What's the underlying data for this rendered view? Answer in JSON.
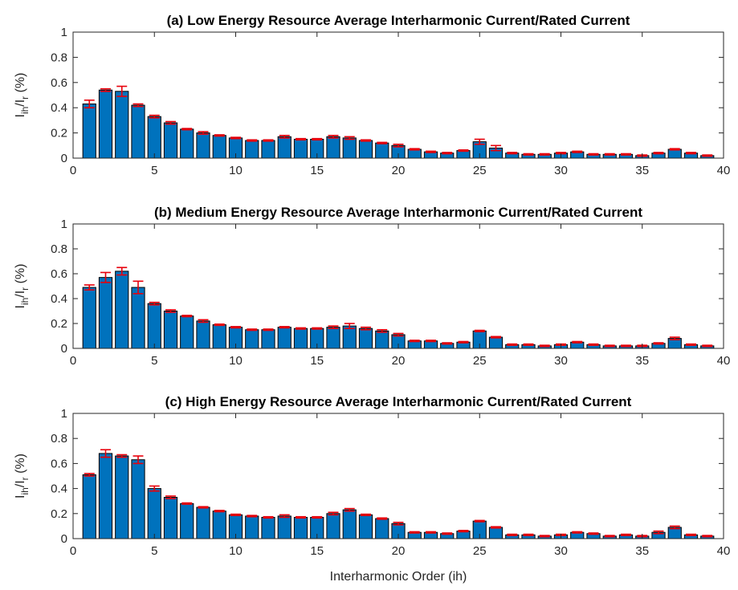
{
  "chart_data": [
    {
      "type": "bar",
      "title": "(a) Low Energy Resource Average Interharmonic Current/Rated Current",
      "ylabel": {
        "base": "I",
        "sub1": "ih",
        "mid": "/I",
        "sub2": "r",
        "unit": " (%)"
      },
      "xlim": [
        0,
        40
      ],
      "ylim": [
        0,
        1
      ],
      "xticks": [
        0,
        5,
        10,
        15,
        20,
        25,
        30,
        35,
        40
      ],
      "yticks": [
        0,
        0.2,
        0.4,
        0.6,
        0.8,
        1
      ],
      "x": [
        1,
        2,
        3,
        4,
        5,
        6,
        7,
        8,
        9,
        10,
        11,
        12,
        13,
        14,
        15,
        16,
        17,
        18,
        19,
        20,
        21,
        22,
        23,
        24,
        25,
        26,
        27,
        28,
        29,
        30,
        31,
        32,
        33,
        34,
        35,
        36,
        37,
        38,
        39
      ],
      "values": [
        0.43,
        0.54,
        0.53,
        0.42,
        0.33,
        0.28,
        0.23,
        0.2,
        0.18,
        0.16,
        0.14,
        0.14,
        0.17,
        0.15,
        0.15,
        0.17,
        0.16,
        0.14,
        0.12,
        0.1,
        0.07,
        0.05,
        0.04,
        0.06,
        0.13,
        0.08,
        0.04,
        0.03,
        0.03,
        0.04,
        0.05,
        0.03,
        0.03,
        0.03,
        0.02,
        0.04,
        0.07,
        0.04,
        0.02
      ],
      "errors": [
        0.03,
        0.01,
        0.04,
        0.01,
        0.01,
        0.01,
        0.005,
        0.01,
        0.005,
        0.005,
        0.005,
        0.005,
        0.01,
        0.005,
        0.005,
        0.01,
        0.01,
        0.005,
        0.005,
        0.01,
        0.005,
        0.005,
        0.005,
        0.005,
        0.02,
        0.02,
        0.005,
        0.005,
        0.005,
        0.005,
        0.005,
        0.005,
        0.005,
        0.005,
        0.005,
        0.005,
        0.005,
        0.005,
        0.005
      ]
    },
    {
      "type": "bar",
      "title": "(b) Medium Energy Resource Average Interharmonic Current/Rated Current",
      "ylabel": {
        "base": "I",
        "sub1": "ih",
        "mid": "/I",
        "sub2": "r",
        "unit": " (%)"
      },
      "xlim": [
        0,
        40
      ],
      "ylim": [
        0,
        1
      ],
      "xticks": [
        0,
        5,
        10,
        15,
        20,
        25,
        30,
        35,
        40
      ],
      "yticks": [
        0,
        0.2,
        0.4,
        0.6,
        0.8,
        1
      ],
      "x": [
        1,
        2,
        3,
        4,
        5,
        6,
        7,
        8,
        9,
        10,
        11,
        12,
        13,
        14,
        15,
        16,
        17,
        18,
        19,
        20,
        21,
        22,
        23,
        24,
        25,
        26,
        27,
        28,
        29,
        30,
        31,
        32,
        33,
        34,
        35,
        36,
        37,
        38,
        39
      ],
      "values": [
        0.49,
        0.57,
        0.62,
        0.49,
        0.36,
        0.3,
        0.26,
        0.22,
        0.19,
        0.17,
        0.15,
        0.15,
        0.17,
        0.16,
        0.16,
        0.17,
        0.18,
        0.16,
        0.14,
        0.11,
        0.06,
        0.06,
        0.04,
        0.05,
        0.14,
        0.09,
        0.03,
        0.03,
        0.02,
        0.03,
        0.05,
        0.03,
        0.02,
        0.02,
        0.02,
        0.04,
        0.08,
        0.03,
        0.02
      ],
      "errors": [
        0.02,
        0.04,
        0.03,
        0.05,
        0.01,
        0.01,
        0.005,
        0.01,
        0.005,
        0.005,
        0.005,
        0.005,
        0.005,
        0.005,
        0.005,
        0.01,
        0.02,
        0.01,
        0.01,
        0.01,
        0.005,
        0.005,
        0.005,
        0.005,
        0.005,
        0.005,
        0.005,
        0.005,
        0.005,
        0.005,
        0.005,
        0.005,
        0.005,
        0.005,
        0.005,
        0.005,
        0.01,
        0.005,
        0.005
      ]
    },
    {
      "type": "bar",
      "title": "(c) High Energy Resource Average Interharmonic Current/Rated Current",
      "ylabel": {
        "base": "I",
        "sub1": "ih",
        "mid": "/I",
        "sub2": "r",
        "unit": " (%)"
      },
      "xlabel": "Interharmonic Order (ih)",
      "xlim": [
        0,
        40
      ],
      "ylim": [
        0,
        1
      ],
      "xticks": [
        0,
        5,
        10,
        15,
        20,
        25,
        30,
        35,
        40
      ],
      "yticks": [
        0,
        0.2,
        0.4,
        0.6,
        0.8,
        1
      ],
      "x": [
        1,
        2,
        3,
        4,
        5,
        6,
        7,
        8,
        9,
        10,
        11,
        12,
        13,
        14,
        15,
        16,
        17,
        18,
        19,
        20,
        21,
        22,
        23,
        24,
        25,
        26,
        27,
        28,
        29,
        30,
        31,
        32,
        33,
        34,
        35,
        36,
        37,
        38,
        39
      ],
      "values": [
        0.51,
        0.68,
        0.66,
        0.63,
        0.4,
        0.33,
        0.28,
        0.25,
        0.22,
        0.19,
        0.18,
        0.17,
        0.18,
        0.17,
        0.17,
        0.2,
        0.23,
        0.19,
        0.16,
        0.12,
        0.05,
        0.05,
        0.04,
        0.06,
        0.14,
        0.09,
        0.03,
        0.03,
        0.02,
        0.03,
        0.05,
        0.04,
        0.02,
        0.03,
        0.02,
        0.05,
        0.09,
        0.03,
        0.02
      ],
      "errors": [
        0.01,
        0.03,
        0.01,
        0.03,
        0.02,
        0.01,
        0.005,
        0.005,
        0.005,
        0.005,
        0.005,
        0.005,
        0.01,
        0.005,
        0.005,
        0.01,
        0.01,
        0.005,
        0.005,
        0.01,
        0.005,
        0.005,
        0.005,
        0.005,
        0.005,
        0.005,
        0.005,
        0.005,
        0.005,
        0.005,
        0.005,
        0.005,
        0.005,
        0.005,
        0.005,
        0.01,
        0.01,
        0.005,
        0.005
      ]
    }
  ],
  "colors": {
    "bar": "#0072BD",
    "bar_edge": "#000000",
    "error": "#E8000B",
    "axes": "#262626"
  }
}
